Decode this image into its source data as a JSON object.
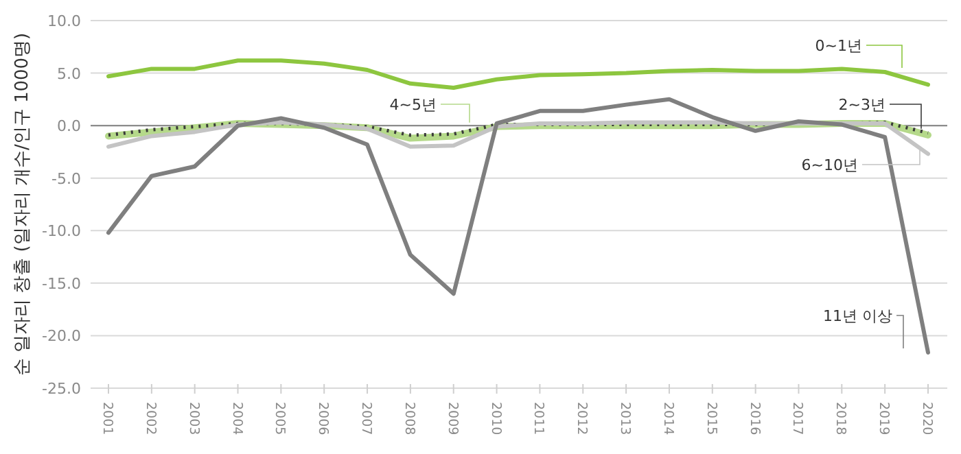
{
  "chart_data": {
    "type": "line",
    "ylabel": "순 일자리 창출 (일자리 개수/인구 1000명)",
    "categories": [
      "2001",
      "2002",
      "2003",
      "2004",
      "2005",
      "2006",
      "2007",
      "2008",
      "2009",
      "2010",
      "2011",
      "2012",
      "2013",
      "2014",
      "2015",
      "2016",
      "2017",
      "2018",
      "2019",
      "2020"
    ],
    "ylim": [
      -25,
      10
    ],
    "yticks": [
      {
        "value": -25,
        "label": "-25.0"
      },
      {
        "value": -20,
        "label": "-20.0"
      },
      {
        "value": -15,
        "label": "-15.0"
      },
      {
        "value": -10,
        "label": "-10.0"
      },
      {
        "value": -5,
        "label": "-5.0"
      },
      {
        "value": 0,
        "label": "0.0"
      },
      {
        "value": 5,
        "label": "5.0"
      },
      {
        "value": 10,
        "label": "10.0"
      }
    ],
    "grid": "y",
    "legend": "right",
    "marker": "none",
    "ref_lines": [
      {
        "axis": "y",
        "value": 0,
        "color": "#8c8c8c"
      }
    ],
    "series": [
      {
        "name": "0~1년",
        "color": "#8dc63f",
        "values": [
          4.7,
          5.4,
          5.4,
          6.2,
          6.2,
          5.9,
          5.3,
          4.0,
          3.6,
          4.4,
          4.8,
          4.9,
          5.0,
          5.2,
          5.3,
          5.2,
          5.2,
          5.4,
          5.1,
          3.9
        ]
      },
      {
        "name": "4~5년",
        "color": "#b5d98a",
        "values": [
          -1.0,
          -0.6,
          -0.2,
          0.2,
          0.1,
          0.0,
          -0.2,
          -1.2,
          -1.0,
          -0.1,
          0.0,
          0.0,
          0.0,
          0.0,
          0.0,
          0.1,
          0.1,
          0.2,
          0.2,
          -0.9
        ]
      },
      {
        "name": "2~3년",
        "color": "#3a3a3a",
        "line_style": "dotted",
        "values": [
          -0.9,
          -0.4,
          -0.1,
          0.2,
          0.2,
          0.1,
          -0.1,
          -0.9,
          -0.8,
          0.1,
          0.1,
          0.1,
          0.1,
          0.1,
          0.1,
          0.1,
          0.2,
          0.2,
          0.3,
          -0.7
        ]
      },
      {
        "name": "6~10년",
        "color": "#c4c4c4",
        "values": [
          -2.0,
          -1.0,
          -0.6,
          0.1,
          0.3,
          0.1,
          -0.3,
          -2.0,
          -1.9,
          -0.1,
          0.2,
          0.2,
          0.3,
          0.3,
          0.3,
          0.2,
          0.2,
          0.2,
          0.2,
          -2.7
        ]
      },
      {
        "name": "11년 이상",
        "color": "#7f7f7f",
        "values": [
          -10.2,
          -4.8,
          -3.9,
          0.0,
          0.7,
          -0.2,
          -1.8,
          -12.3,
          -16.0,
          0.2,
          1.4,
          1.4,
          2.0,
          2.5,
          0.8,
          -0.5,
          0.4,
          0.1,
          -1.1,
          -21.6
        ]
      }
    ]
  }
}
